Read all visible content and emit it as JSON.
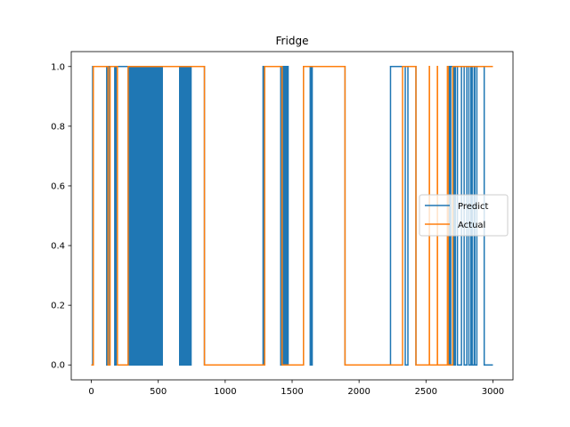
{
  "chart_data": {
    "type": "line",
    "title": "Fridge",
    "xlabel": "",
    "ylabel": "",
    "xlim": [
      -150,
      3150
    ],
    "ylim": [
      -0.05,
      1.05
    ],
    "x_ticks": [
      0,
      500,
      1000,
      1500,
      2000,
      2500,
      3000
    ],
    "y_ticks": [
      0.0,
      0.2,
      0.4,
      0.6,
      0.8,
      1.0
    ],
    "x_tick_labels": [
      "0",
      "500",
      "1000",
      "1500",
      "2000",
      "2500",
      "3000"
    ],
    "y_tick_labels": [
      "0.0",
      "0.2",
      "0.4",
      "0.6",
      "0.8",
      "1.0"
    ],
    "grid": false,
    "legend_position": "center-right",
    "series": [
      {
        "name": "Predict",
        "color": "#1f77b4",
        "steps": [
          [
            0,
            0
          ],
          [
            10,
            1
          ],
          [
            110,
            1
          ],
          [
            115,
            0
          ],
          [
            118,
            1
          ],
          [
            125,
            0
          ],
          [
            130,
            1
          ],
          [
            170,
            1
          ],
          [
            175,
            0
          ],
          [
            185,
            1
          ],
          [
            270,
            1
          ],
          [
            275,
            0
          ],
          [
            280,
            1
          ],
          [
            285,
            0
          ],
          [
            290,
            1
          ],
          [
            295,
            0
          ],
          [
            300,
            1
          ],
          [
            305,
            0
          ],
          [
            310,
            1
          ],
          [
            315,
            0
          ],
          [
            320,
            1
          ],
          [
            325,
            0
          ],
          [
            330,
            1
          ],
          [
            335,
            0
          ],
          [
            340,
            1
          ],
          [
            345,
            0
          ],
          [
            350,
            1
          ],
          [
            355,
            0
          ],
          [
            360,
            1
          ],
          [
            365,
            0
          ],
          [
            370,
            1
          ],
          [
            375,
            0
          ],
          [
            380,
            1
          ],
          [
            385,
            0
          ],
          [
            390,
            1
          ],
          [
            395,
            0
          ],
          [
            400,
            1
          ],
          [
            405,
            0
          ],
          [
            410,
            1
          ],
          [
            415,
            0
          ],
          [
            420,
            1
          ],
          [
            425,
            0
          ],
          [
            430,
            1
          ],
          [
            435,
            0
          ],
          [
            440,
            1
          ],
          [
            445,
            0
          ],
          [
            450,
            1
          ],
          [
            455,
            0
          ],
          [
            460,
            1
          ],
          [
            465,
            0
          ],
          [
            470,
            1
          ],
          [
            475,
            0
          ],
          [
            480,
            1
          ],
          [
            485,
            0
          ],
          [
            490,
            1
          ],
          [
            495,
            0
          ],
          [
            500,
            1
          ],
          [
            505,
            0
          ],
          [
            510,
            1
          ],
          [
            515,
            0
          ],
          [
            520,
            1
          ],
          [
            525,
            0
          ],
          [
            530,
            1
          ],
          [
            655,
            1
          ],
          [
            660,
            0
          ],
          [
            665,
            1
          ],
          [
            670,
            0
          ],
          [
            675,
            1
          ],
          [
            680,
            0
          ],
          [
            685,
            1
          ],
          [
            690,
            0
          ],
          [
            695,
            1
          ],
          [
            700,
            0
          ],
          [
            705,
            1
          ],
          [
            710,
            0
          ],
          [
            715,
            1
          ],
          [
            720,
            0
          ],
          [
            725,
            1
          ],
          [
            730,
            0
          ],
          [
            735,
            1
          ],
          [
            740,
            0
          ],
          [
            745,
            1
          ],
          [
            840,
            1
          ],
          [
            845,
            0
          ],
          [
            1280,
            0
          ],
          [
            1283,
            1
          ],
          [
            1288,
            0
          ],
          [
            1291,
            1
          ],
          [
            1410,
            1
          ],
          [
            1415,
            0
          ],
          [
            1425,
            0
          ],
          [
            1428,
            1
          ],
          [
            1432,
            0
          ],
          [
            1437,
            1
          ],
          [
            1443,
            0
          ],
          [
            1447,
            1
          ],
          [
            1452,
            0
          ],
          [
            1456,
            1
          ],
          [
            1463,
            0
          ],
          [
            1466,
            1
          ],
          [
            1470,
            0
          ],
          [
            1580,
            0
          ],
          [
            1585,
            1
          ],
          [
            1630,
            1
          ],
          [
            1635,
            0
          ],
          [
            1640,
            1
          ],
          [
            1645,
            0
          ],
          [
            1650,
            1
          ],
          [
            1890,
            1
          ],
          [
            1895,
            0
          ],
          [
            2230,
            0
          ],
          [
            2235,
            1
          ],
          [
            2340,
            1
          ],
          [
            2345,
            0
          ],
          [
            2360,
            0
          ],
          [
            2365,
            1
          ],
          [
            2420,
            1
          ],
          [
            2425,
            0
          ],
          [
            2660,
            0
          ],
          [
            2665,
            1
          ],
          [
            2670,
            0
          ],
          [
            2675,
            1
          ],
          [
            2680,
            0
          ],
          [
            2685,
            1
          ],
          [
            2700,
            1
          ],
          [
            2705,
            0
          ],
          [
            2710,
            1
          ],
          [
            2715,
            0
          ],
          [
            2720,
            1
          ],
          [
            2730,
            1
          ],
          [
            2735,
            0
          ],
          [
            2760,
            0
          ],
          [
            2765,
            1
          ],
          [
            2780,
            1
          ],
          [
            2785,
            0
          ],
          [
            2800,
            0
          ],
          [
            2805,
            1
          ],
          [
            2815,
            1
          ],
          [
            2820,
            0
          ],
          [
            2830,
            0
          ],
          [
            2835,
            1
          ],
          [
            2840,
            1
          ],
          [
            2845,
            0
          ],
          [
            2855,
            0
          ],
          [
            2860,
            1
          ],
          [
            2865,
            0
          ],
          [
            2875,
            0
          ],
          [
            2880,
            1
          ],
          [
            2930,
            1
          ],
          [
            2935,
            0
          ],
          [
            3000,
            0
          ]
        ]
      },
      {
        "name": "Actual",
        "color": "#ff7f0e",
        "steps": [
          [
            0,
            0
          ],
          [
            15,
            1
          ],
          [
            120,
            1
          ],
          [
            125,
            0
          ],
          [
            135,
            0
          ],
          [
            140,
            1
          ],
          [
            190,
            1
          ],
          [
            195,
            0
          ],
          [
            270,
            0
          ],
          [
            275,
            1
          ],
          [
            840,
            1
          ],
          [
            845,
            0
          ],
          [
            1290,
            0
          ],
          [
            1295,
            1
          ],
          [
            1420,
            1
          ],
          [
            1425,
            0
          ],
          [
            1580,
            0
          ],
          [
            1585,
            1
          ],
          [
            1890,
            1
          ],
          [
            1895,
            0
          ],
          [
            2320,
            0
          ],
          [
            2325,
            1
          ],
          [
            2420,
            1
          ],
          [
            2425,
            0
          ],
          [
            2520,
            0
          ],
          [
            2525,
            1
          ],
          [
            2526,
            0
          ],
          [
            2580,
            0
          ],
          [
            2585,
            1
          ],
          [
            2586,
            0
          ],
          [
            2655,
            0
          ],
          [
            2660,
            1
          ],
          [
            2665,
            0
          ],
          [
            2695,
            0
          ],
          [
            2700,
            1
          ],
          [
            3000,
            1
          ]
        ]
      }
    ]
  }
}
